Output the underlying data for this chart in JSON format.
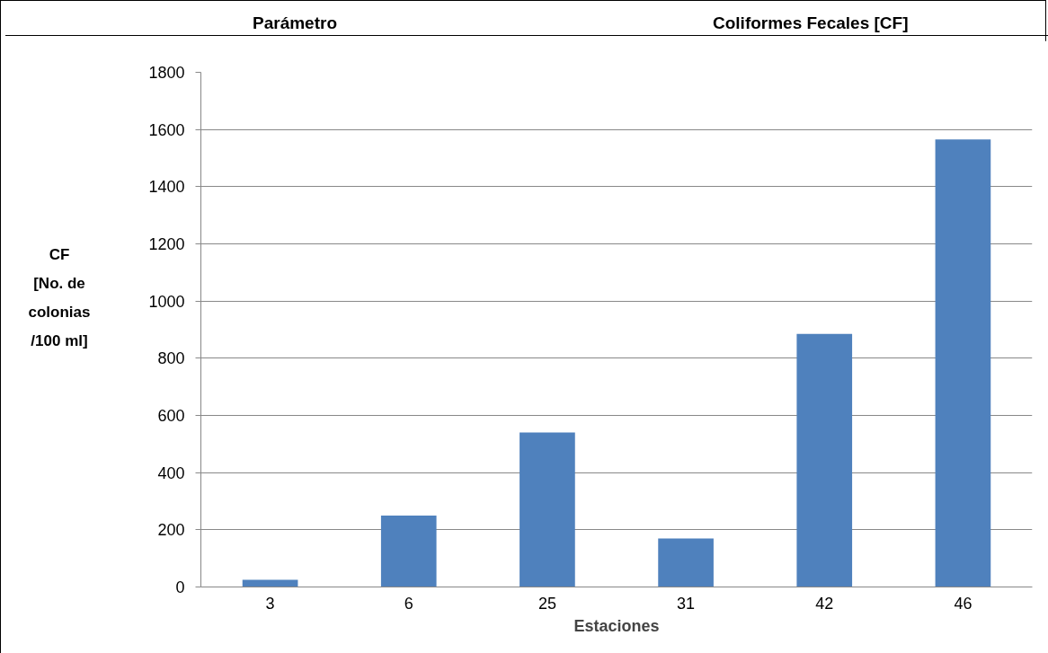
{
  "chart_data": {
    "type": "bar",
    "title": "Parámetro",
    "subtitle": "Coliformes Fecales [CF]",
    "xlabel": "Estaciones",
    "ylabel": "CF\n[No. de\ncolonias\n/100 ml]",
    "categories": [
      "3",
      "6",
      "25",
      "31",
      "42",
      "46"
    ],
    "values": [
      25,
      250,
      540,
      170,
      885,
      1565
    ],
    "color": "#4f81bd",
    "ylim": [
      0,
      1800
    ],
    "yticks": [
      0,
      200,
      400,
      600,
      800,
      1000,
      1200,
      1400,
      1600,
      1800
    ],
    "grid": "y"
  }
}
